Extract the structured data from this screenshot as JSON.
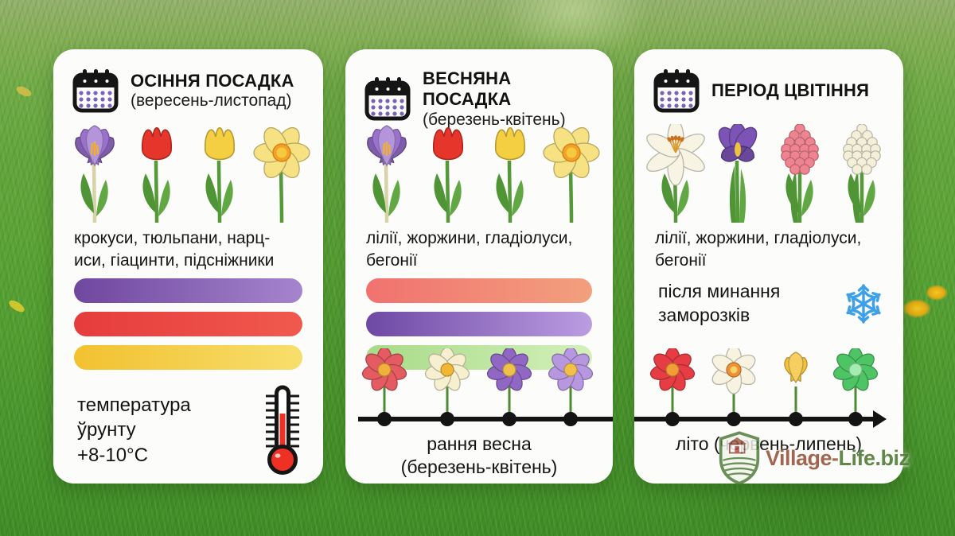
{
  "cards": [
    {
      "title": "ОСІННЯ ПОСАДКА",
      "subtitle": "(вересень-листопад)",
      "plants": "крокуси, тюльпани, нарц-\nиси, гіацинти, підсніжники",
      "temperature": "температура\nўрунту\n+8-10°C",
      "flowers": [
        {
          "type": "crocus",
          "color": "#9b71cf"
        },
        {
          "type": "tulip",
          "color": "#e6352a"
        },
        {
          "type": "tulip",
          "color": "#f4cf42"
        },
        {
          "type": "daffodil",
          "color": "#f6e183"
        }
      ],
      "bars": [
        {
          "from": "#6f479f",
          "to": "#a584cd"
        },
        {
          "from": "#e63c3c",
          "to": "#f0594e"
        },
        {
          "from": "#f2c130",
          "to": "#f7de6c"
        }
      ]
    },
    {
      "title": "ВЕСНЯНА ПОСАДКА",
      "subtitle": "(березень-квітень)",
      "plants": "лілії, жоржини, гладіолуси,\nбегонії",
      "flowers": [
        {
          "type": "crocus",
          "color": "#9b71cf"
        },
        {
          "type": "tulip",
          "color": "#e6352a"
        },
        {
          "type": "tulip",
          "color": "#f4cf42"
        },
        {
          "type": "daffodil",
          "color": "#f6e183"
        }
      ],
      "bars": [
        {
          "from": "#f1726f",
          "to": "#f2a07e"
        },
        {
          "from": "#6e48a4",
          "to": "#bb9de2"
        },
        {
          "from": "#a7db87",
          "to": "#d3f0ba"
        }
      ],
      "timeline": {
        "caption": "рання весна\n(березень-квітень)",
        "flowers": [
          {
            "type": "daisy",
            "petal": "#e45b62",
            "center": "#f2b13c"
          },
          {
            "type": "daisy",
            "petal": "#f7f0d0",
            "center": "#f2b635"
          },
          {
            "type": "daisy",
            "petal": "#9067c2",
            "center": "#f0c14a"
          },
          {
            "type": "daisy",
            "petal": "#b797e0",
            "center": "#f2c04a"
          }
        ]
      }
    },
    {
      "title": "ПЕРІОД ЦВІТІННЯ",
      "plants": "лілії, жоржини, гладіолуси,\nбегонії",
      "frost_note": "після минання\nзаморозків",
      "flowers": [
        {
          "type": "lily",
          "color": "#f8f4e3"
        },
        {
          "type": "iris",
          "color": "#7b54b6"
        },
        {
          "type": "hyacinth",
          "color": "#ef8490"
        },
        {
          "type": "hyacinth",
          "color": "#f4efd9"
        }
      ],
      "timeline": {
        "caption": "літо (червень-липень)",
        "flowers": [
          {
            "type": "daisy",
            "petal": "#e63d44",
            "center": "#f29e35"
          },
          {
            "type": "narcissus",
            "petal": "#f8f3e0",
            "center": "#ef8f35"
          },
          {
            "type": "crocus",
            "petal": "#f5c33a",
            "center": "#e0a81e"
          },
          {
            "type": "daisy",
            "petal": "#4ec565",
            "center": "#a5ecb0"
          }
        ]
      }
    }
  ],
  "icons": {
    "header": "calendar-icon",
    "temperature": "thermometer-icon",
    "frost": "snowflake-icon"
  },
  "colors": {
    "timeline": "#141414",
    "snowflake": "#3ea0e8",
    "calendar_dots": "#7a62b8",
    "thermometer_red": "#ee3124"
  },
  "watermark": {
    "prefix": "Village-",
    "suffix": "Life.biz"
  }
}
